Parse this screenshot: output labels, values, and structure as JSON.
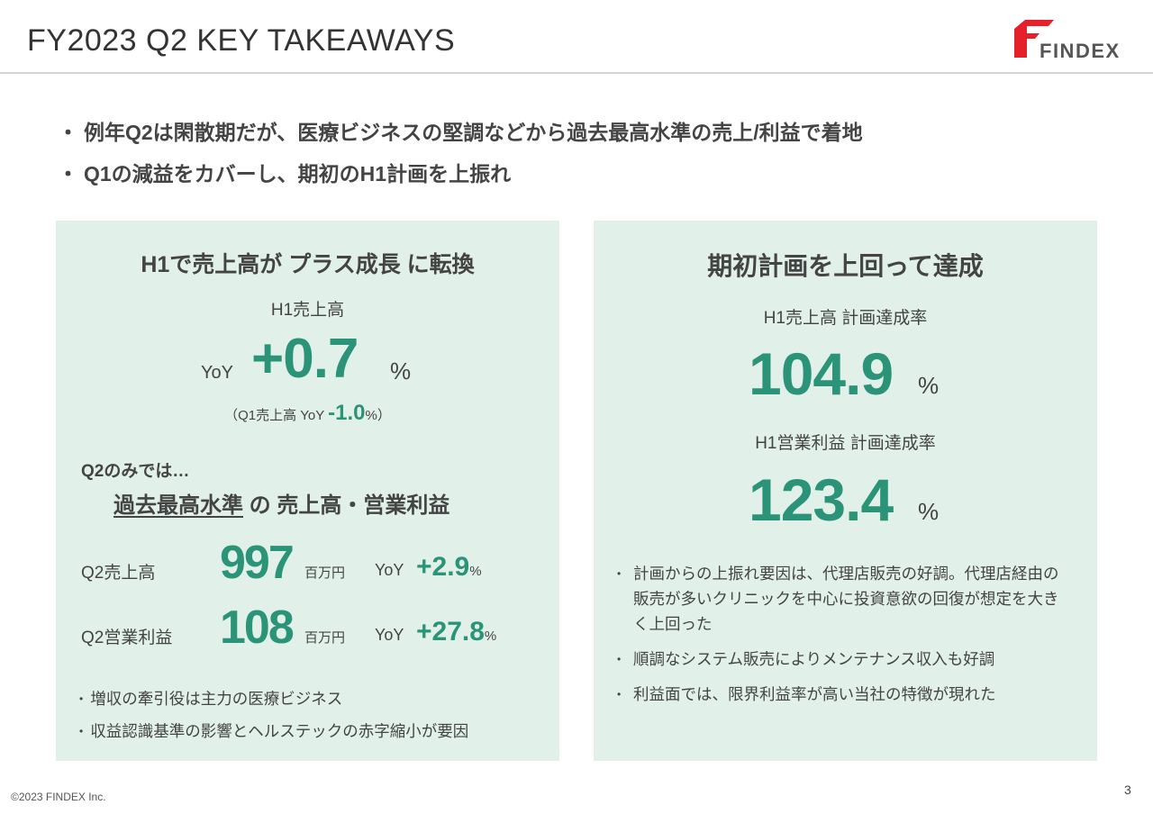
{
  "header": {
    "title": "FY2023 Q2 KEY TAKEAWAYS",
    "logo_text": "FINDEX",
    "brand_color": "#e5202a"
  },
  "top_bullets": [
    "例年Q2は閑散期だが、医療ビジネスの堅調などから過去最高水準の売上/利益で着地",
    "Q1の減益をカバーし、期初のH1計画を上振れ"
  ],
  "left_panel": {
    "heading": "H1で売上高が プラス成長 に転換",
    "sales_label": "H1売上高",
    "yoy_label": "YoY",
    "yoy_value": "+0.7",
    "pct": "%",
    "sub_prefix": "（Q1売上高 YoY ",
    "sub_value": "-1.0",
    "sub_suffix": "%）",
    "q2_only": "Q2のみでは…",
    "record_underlined": "過去最高水準",
    "record_rest": " の 売上高・営業利益",
    "metrics": [
      {
        "label": "Q2売上高",
        "value": "997",
        "unit": "百万円",
        "yoy": "YoY",
        "change": "+2.9",
        "pct": "%"
      },
      {
        "label": "Q2営業利益",
        "value": "108",
        "unit": "百万円",
        "yoy": "YoY",
        "change": "+27.8",
        "pct": "%"
      }
    ],
    "notes": [
      "増収の牽引役は主力の医療ビジネス",
      "収益認識基準の影響とヘルステックの赤字縮小が要因"
    ]
  },
  "right_panel": {
    "heading": "期初計画を上回って達成",
    "sales_plan_label": "H1売上高 計画達成率",
    "sales_plan_value": "104.9",
    "profit_plan_label": "H1営業利益 計画達成率",
    "profit_plan_value": "123.4",
    "pct": "%",
    "notes": [
      "計画からの上振れ要因は、代理店販売の好調。代理店経由の販売が多いクリニックを中心に投資意欲の回復が想定を大きく上回った",
      "順調なシステム販売によりメンテナンス収入も好調",
      "利益面では、限界利益率が高い当社の特徴が現れた"
    ]
  },
  "colors": {
    "accent_green": "#2b9478",
    "panel_bg": "#e1f0e8"
  },
  "footer": {
    "copyright": "©2023 FINDEX Inc.",
    "page_number": "3"
  }
}
